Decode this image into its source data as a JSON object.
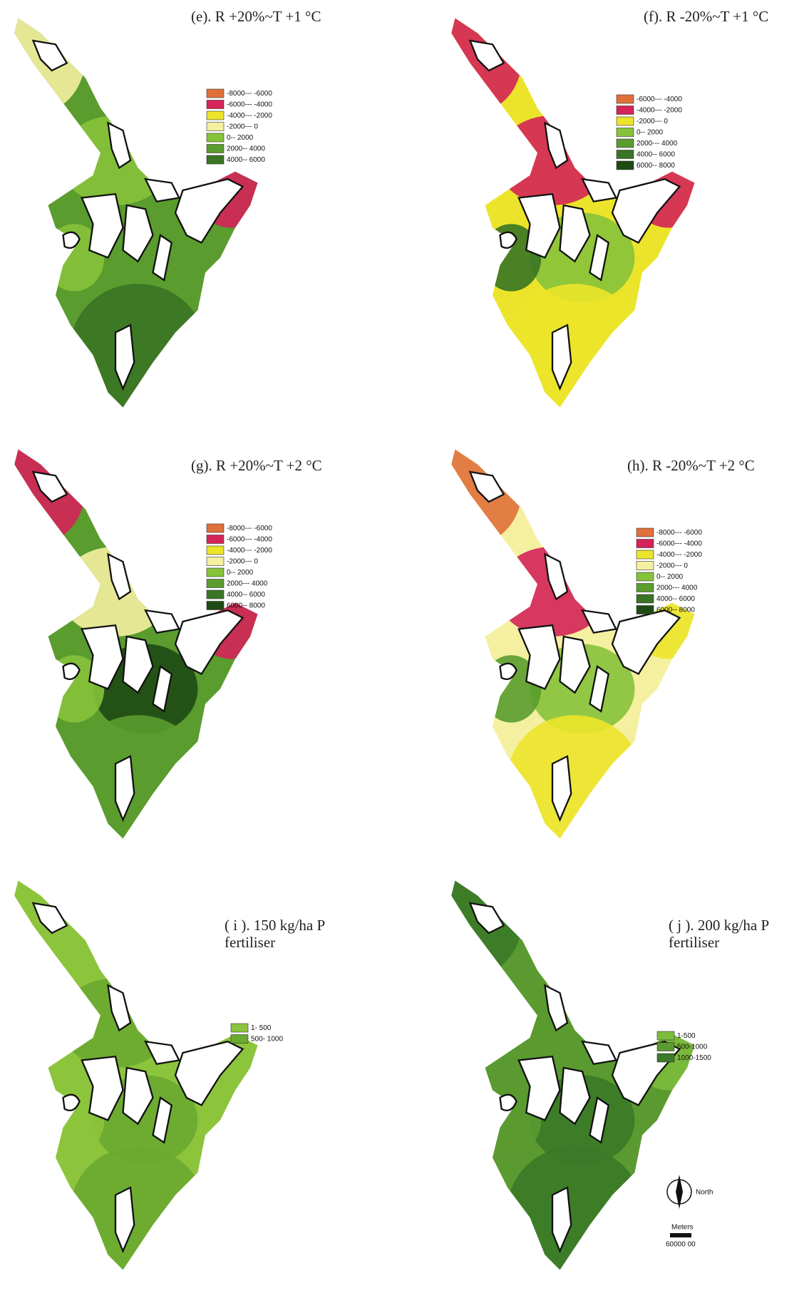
{
  "panels": [
    {
      "title": "(e). R +20%~T +1 °C",
      "legend": [
        {
          "label": "-8000--- -6000",
          "color": "#e0703a"
        },
        {
          "label": "-6000--- -4000",
          "color": "#d42458"
        },
        {
          "label": "-4000--- -2000",
          "color": "#ece42a"
        },
        {
          "label": "-2000--- 0",
          "color": "#f4f0a0"
        },
        {
          "label": "0-- 2000",
          "color": "#86c23a"
        },
        {
          "label": "2000-- 4000",
          "color": "#5a9c2e"
        },
        {
          "label": "4000-- 6000",
          "color": "#3a7424"
        }
      ]
    },
    {
      "title": "(f). R -20%~T +1 °C",
      "legend": [
        {
          "label": "-6000--- -4000",
          "color": "#e0703a"
        },
        {
          "label": "-4000--- -2000",
          "color": "#d42458"
        },
        {
          "label": "-2000--- 0",
          "color": "#ece42a"
        },
        {
          "label": "0-- 2000",
          "color": "#86c23a"
        },
        {
          "label": "2000--- 4000",
          "color": "#5a9c2e"
        },
        {
          "label": "4000-- 6000",
          "color": "#3a7424"
        },
        {
          "label": "6000-- 8000",
          "color": "#1e4a14"
        }
      ]
    },
    {
      "title": "(g). R +20%~T +2 °C",
      "legend": [
        {
          "label": "-8000--- -6000",
          "color": "#e0703a"
        },
        {
          "label": "-6000--- -4000",
          "color": "#d42458"
        },
        {
          "label": "-4000--- -2000",
          "color": "#ece42a"
        },
        {
          "label": "-2000--- 0",
          "color": "#f4f0a0"
        },
        {
          "label": "0-- 2000",
          "color": "#86c23a"
        },
        {
          "label": "2000--- 4000",
          "color": "#5a9c2e"
        },
        {
          "label": "4000-- 6000",
          "color": "#3a7424"
        },
        {
          "label": "6000-- 8000",
          "color": "#1e4a14"
        }
      ]
    },
    {
      "title": "(h). R -20%~T +2 °C",
      "legend": [
        {
          "label": "-8000--- -6000",
          "color": "#e0703a"
        },
        {
          "label": "-6000--- -4000",
          "color": "#d42458"
        },
        {
          "label": "-4000--- -2000",
          "color": "#ece42a"
        },
        {
          "label": "-2000--- 0",
          "color": "#f4f0a0"
        },
        {
          "label": "0-- 2000",
          "color": "#86c23a"
        },
        {
          "label": "2000--- 4000",
          "color": "#5a9c2e"
        },
        {
          "label": "4000-- 6000",
          "color": "#3a7424"
        },
        {
          "label": "6000-- 8000",
          "color": "#1e4a14"
        }
      ]
    },
    {
      "title": "( i ). 150 kg/ha  P",
      "title_line2": "fertiliser",
      "legend": [
        {
          "label": "1- 500",
          "color": "#8cc43c"
        },
        {
          "label": "500- 1000",
          "color": "#6aaa30"
        }
      ]
    },
    {
      "title": "( j ). 200 kg/ha  P",
      "title_line2": "fertiliser",
      "legend": [
        {
          "label": "1-500",
          "color": "#7cbc3c"
        },
        {
          "label": "500-1000",
          "color": "#5a9a30"
        },
        {
          "label": "1000-1500",
          "color": "#3a7a28"
        }
      ]
    }
  ],
  "north_label": "North",
  "scale_label": "Meters",
  "scale_value": "60000 00"
}
